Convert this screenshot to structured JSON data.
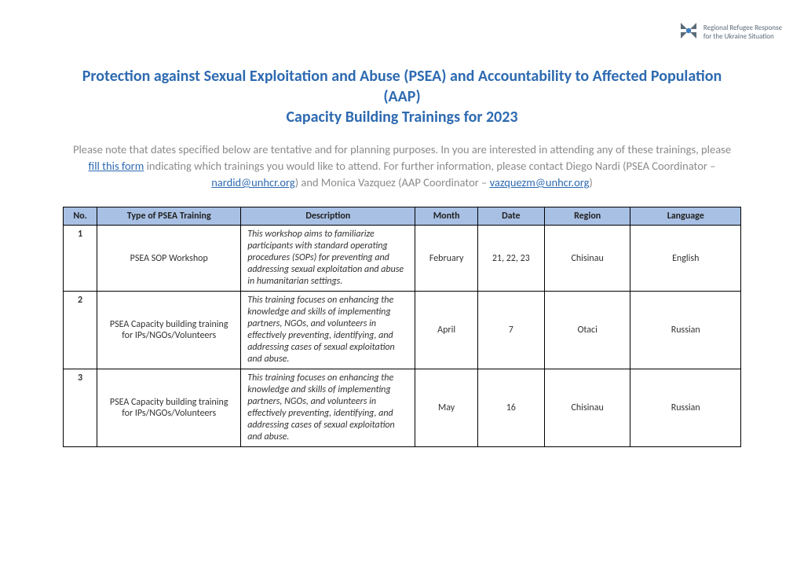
{
  "logo": {
    "line1": "Regional Refugee Response",
    "line2": "for the Ukraine Situation",
    "mark_color": "#5b6b78",
    "accent_color": "#3a7bbf"
  },
  "title_line1": "Protection against Sexual Exploitation and Abuse (PSEA) and Accountability to Affected Population (AAP)",
  "title_line2": "Capacity Building Trainings for 2023",
  "intro": {
    "part1": "Please note that dates specified below are tentative and for planning purposes. In you are interested in attending any of these trainings, please ",
    "link1_text": "fill this form",
    "part2": " indicating which trainings you would like to attend. For further information, please contact Diego Nardi (PSEA Coordinator – ",
    "email1": "nardid@unhcr.org",
    "part3": ") and Monica Vazquez (AAP Coordinator – ",
    "email2": "vazquezm@unhcr.org",
    "part4": ")"
  },
  "table": {
    "header_bg": "#a8c0e4",
    "border_color": "#000000",
    "columns": [
      "No.",
      "Type of PSEA Training",
      "Description",
      "Month",
      "Date",
      "Region",
      "Language"
    ],
    "rows": [
      {
        "no": "1",
        "type": "PSEA SOP Workshop",
        "desc": "This workshop aims to familiarize participants with standard operating procedures (SOPs) for preventing and addressing sexual exploitation and abuse in humanitarian settings.",
        "month": "February",
        "date": "21, 22, 23",
        "region": "Chisinau",
        "language": "English"
      },
      {
        "no": "2",
        "type": "PSEA Capacity building training for IPs/NGOs/Volunteers",
        "desc": "This training focuses on enhancing the knowledge and skills of implementing partners, NGOs, and volunteers in effectively preventing, identifying, and addressing cases of sexual exploitation and abuse.",
        "month": "April",
        "date": "7",
        "region": "Otaci",
        "language": "Russian"
      },
      {
        "no": "3",
        "type": "PSEA Capacity building training for IPs/NGOs/Volunteers",
        "desc": "This training focuses on enhancing the knowledge and skills of implementing partners, NGOs, and volunteers in effectively preventing, identifying, and addressing cases of sexual exploitation and abuse.",
        "month": "May",
        "date": "16",
        "region": "Chisinau",
        "language": "Russian"
      }
    ]
  }
}
